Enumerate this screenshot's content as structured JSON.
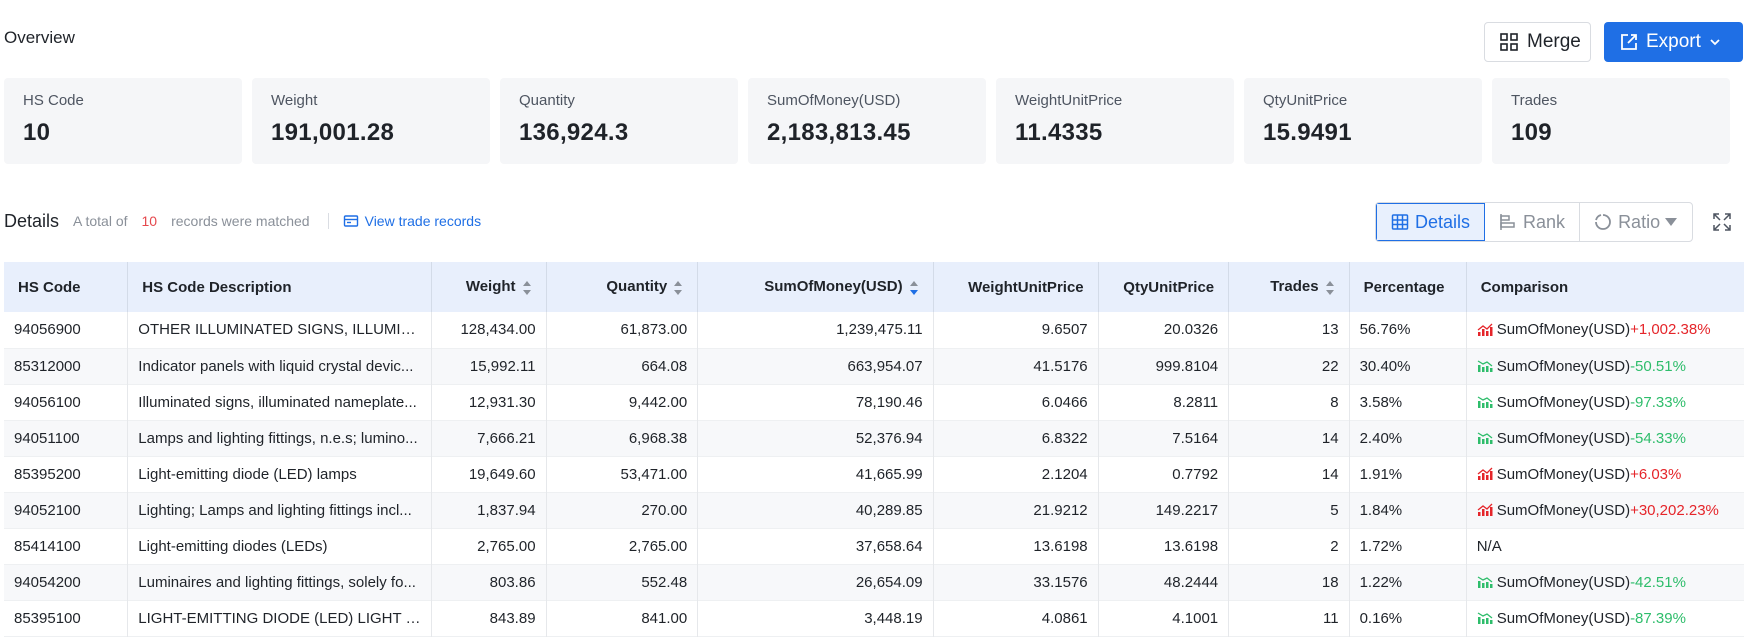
{
  "overview": {
    "title": "Overview"
  },
  "toolbar": {
    "merge_label": "Merge",
    "export_label": "Export"
  },
  "cards": [
    {
      "label": "HS Code",
      "value": "10"
    },
    {
      "label": "Weight",
      "value": "191,001.28"
    },
    {
      "label": "Quantity",
      "value": "136,924.3"
    },
    {
      "label": "SumOfMoney(USD)",
      "value": "2,183,813.45"
    },
    {
      "label": "WeightUnitPrice",
      "value": "11.4335"
    },
    {
      "label": "QtyUnitPrice",
      "value": "15.9491"
    },
    {
      "label": "Trades",
      "value": "109"
    }
  ],
  "details": {
    "title": "Details",
    "total_prefix": "A total of",
    "total_count": "10",
    "total_suffix": "records were matched",
    "view_link": "View trade records"
  },
  "view_modes": {
    "details": "Details",
    "rank": "Rank",
    "ratio": "Ratio"
  },
  "colors": {
    "accent": "#1f6fe5",
    "increase": "#e5252a",
    "decrease": "#2ebd6b",
    "count": "#e5484d"
  },
  "table": {
    "columns": [
      "HS Code",
      "HS Code Description",
      "Weight",
      "Quantity",
      "SumOfMoney(USD)",
      "WeightUnitPrice",
      "QtyUnitPrice",
      "Trades",
      "Percentage",
      "Comparison"
    ],
    "rows": [
      {
        "code": "94056900",
        "desc": "OTHER ILLUMINATED SIGNS, ILLUMINA...",
        "weight": "128,434.00",
        "qty": "61,873.00",
        "sum": "1,239,475.11",
        "wup": "9.6507",
        "qup": "20.0326",
        "trades": "13",
        "pct": "56.76%",
        "cmp_label": "SumOfMoney(USD)",
        "cmp_value": "+1,002.38%",
        "trend": "up"
      },
      {
        "code": "85312000",
        "desc": "Indicator panels with liquid crystal devic...",
        "weight": "15,992.11",
        "qty": "664.08",
        "sum": "663,954.07",
        "wup": "41.5176",
        "qup": "999.8104",
        "trades": "22",
        "pct": "30.40%",
        "cmp_label": "SumOfMoney(USD)",
        "cmp_value": "-50.51%",
        "trend": "down"
      },
      {
        "code": "94056100",
        "desc": "Illuminated signs, illuminated nameplate...",
        "weight": "12,931.30",
        "qty": "9,442.00",
        "sum": "78,190.46",
        "wup": "6.0466",
        "qup": "8.2811",
        "trades": "8",
        "pct": "3.58%",
        "cmp_label": "SumOfMoney(USD)",
        "cmp_value": "-97.33%",
        "trend": "down"
      },
      {
        "code": "94051100",
        "desc": "Lamps and lighting fittings, n.e.s; lumino...",
        "weight": "7,666.21",
        "qty": "6,968.38",
        "sum": "52,376.94",
        "wup": "6.8322",
        "qup": "7.5164",
        "trades": "14",
        "pct": "2.40%",
        "cmp_label": "SumOfMoney(USD)",
        "cmp_value": "-54.33%",
        "trend": "down"
      },
      {
        "code": "85395200",
        "desc": "Light-emitting diode (LED) lamps",
        "weight": "19,649.60",
        "qty": "53,471.00",
        "sum": "41,665.99",
        "wup": "2.1204",
        "qup": "0.7792",
        "trades": "14",
        "pct": "1.91%",
        "cmp_label": "SumOfMoney(USD)",
        "cmp_value": "+6.03%",
        "trend": "up"
      },
      {
        "code": "94052100",
        "desc": "Lighting; Lamps and lighting fittings incl...",
        "weight": "1,837.94",
        "qty": "270.00",
        "sum": "40,289.85",
        "wup": "21.9212",
        "qup": "149.2217",
        "trades": "5",
        "pct": "1.84%",
        "cmp_label": "SumOfMoney(USD)",
        "cmp_value": "+30,202.23%",
        "trend": "up"
      },
      {
        "code": "85414100",
        "desc": "Light-emitting diodes (LEDs)",
        "weight": "2,765.00",
        "qty": "2,765.00",
        "sum": "37,658.64",
        "wup": "13.6198",
        "qup": "13.6198",
        "trades": "2",
        "pct": "1.72%",
        "cmp_label": "N/A",
        "cmp_value": "",
        "trend": "none"
      },
      {
        "code": "94054200",
        "desc": "Luminaires and lighting fittings, solely fo...",
        "weight": "803.86",
        "qty": "552.48",
        "sum": "26,654.09",
        "wup": "33.1576",
        "qup": "48.2444",
        "trades": "18",
        "pct": "1.22%",
        "cmp_label": "SumOfMoney(USD)",
        "cmp_value": "-42.51%",
        "trend": "down"
      },
      {
        "code": "85395100",
        "desc": "LIGHT-EMITTING DIODE (LED) LIGHT SO...",
        "weight": "843.89",
        "qty": "841.00",
        "sum": "3,448.19",
        "wup": "4.0861",
        "qup": "4.1001",
        "trades": "11",
        "pct": "0.16%",
        "cmp_label": "SumOfMoney(USD)",
        "cmp_value": "-87.39%",
        "trend": "down"
      }
    ]
  }
}
